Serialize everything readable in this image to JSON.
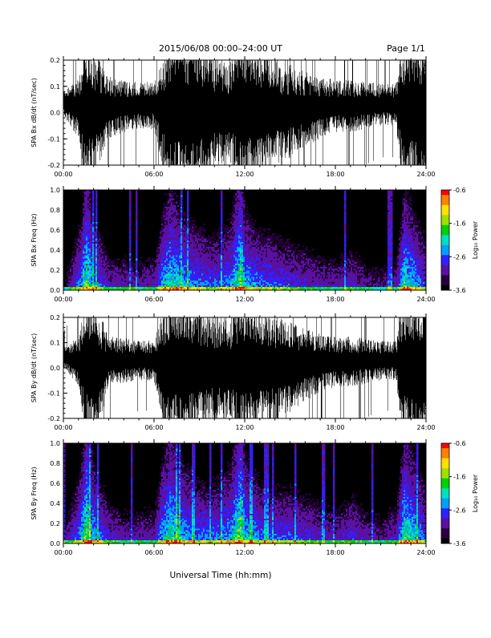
{
  "header": {
    "title": "2015/06/08  00:00–24:00 UT",
    "page_label": "Page 1/1"
  },
  "colors": {
    "trace": "#000000",
    "spectrogram_background": "#000000",
    "colormap": [
      "#000000",
      "#2a0040",
      "#5a10a0",
      "#3020ff",
      "#00a0ff",
      "#00e0c0",
      "#00d000",
      "#a0e000",
      "#ffe000",
      "#ff8000",
      "#ff0000"
    ]
  },
  "chart_data": [
    {
      "type": "line",
      "ylabel": "SPA Bx dB/dt (nT/sec)",
      "xlabel": "",
      "x_ticks": [
        "00:00",
        "06:00",
        "12:00",
        "18:00",
        "24:00"
      ],
      "xlim": [
        0,
        24
      ],
      "ylim": [
        -0.2,
        0.2
      ],
      "y_ticks": [
        "-0.2",
        "-0.1",
        "0.0",
        "0.1",
        "0.2"
      ],
      "x_hours": [
        0,
        1,
        1.5,
        2,
        3,
        4,
        5,
        6,
        6.5,
        7,
        8,
        9,
        10,
        11,
        11.7,
        12,
        13,
        14,
        15,
        16,
        17,
        18,
        19,
        20,
        21,
        22,
        22.5,
        23,
        24
      ],
      "envelope_nT_per_s": [
        0.05,
        0.12,
        0.3,
        0.25,
        0.12,
        0.1,
        0.09,
        0.09,
        0.2,
        0.3,
        0.3,
        0.28,
        0.22,
        0.2,
        0.3,
        0.28,
        0.25,
        0.2,
        0.18,
        0.14,
        0.12,
        0.1,
        0.1,
        0.09,
        0.08,
        0.08,
        0.3,
        0.3,
        0.3
      ]
    },
    {
      "type": "heatmap",
      "ylabel": "SPA Bx Freq (Hz)",
      "xlabel": "",
      "x_ticks": [
        "00:00",
        "06:00",
        "12:00",
        "18:00",
        "24:00"
      ],
      "xlim": [
        0,
        24
      ],
      "ylim": [
        0,
        1.0
      ],
      "y_ticks": [
        "0.0",
        "0.2",
        "0.4",
        "0.6",
        "0.8",
        "1.0"
      ],
      "colorbar": {
        "label": "Log₁₀ Power",
        "range": [
          -3.6,
          -0.6
        ],
        "ticks": [
          "-0.6",
          "-1.6",
          "-2.6",
          "-3.6"
        ]
      },
      "x_hours": [
        0,
        1,
        1.5,
        2,
        3,
        4,
        5,
        6,
        6.5,
        7,
        8,
        9,
        10,
        11,
        11.7,
        12,
        13,
        14,
        15,
        16,
        17,
        18,
        19,
        20,
        21,
        22,
        22.5,
        23,
        24
      ],
      "activity_level": [
        0.15,
        0.5,
        0.85,
        0.55,
        0.3,
        0.3,
        0.28,
        0.3,
        0.6,
        0.75,
        0.6,
        0.5,
        0.45,
        0.55,
        0.9,
        0.6,
        0.5,
        0.45,
        0.4,
        0.35,
        0.3,
        0.28,
        0.35,
        0.25,
        0.22,
        0.3,
        0.75,
        0.65,
        0.4
      ]
    },
    {
      "type": "line",
      "ylabel": "SPA By dB/dt (nT/sec)",
      "xlabel": "",
      "x_ticks": [
        "00:00",
        "06:00",
        "12:00",
        "18:00",
        "24:00"
      ],
      "xlim": [
        0,
        24
      ],
      "ylim": [
        -0.2,
        0.2
      ],
      "y_ticks": [
        "-0.2",
        "-0.1",
        "0.0",
        "0.1",
        "0.2"
      ],
      "x_hours": [
        0,
        1,
        1.5,
        2,
        3,
        4,
        5,
        6,
        6.5,
        7,
        8,
        9,
        10,
        11,
        11.7,
        12,
        13,
        14,
        15,
        16,
        17,
        18,
        19,
        20,
        21,
        22,
        22.5,
        23,
        24
      ],
      "envelope_nT_per_s": [
        0.04,
        0.1,
        0.3,
        0.3,
        0.1,
        0.09,
        0.08,
        0.08,
        0.22,
        0.3,
        0.3,
        0.25,
        0.22,
        0.2,
        0.3,
        0.28,
        0.25,
        0.22,
        0.18,
        0.15,
        0.12,
        0.1,
        0.1,
        0.09,
        0.08,
        0.08,
        0.3,
        0.3,
        0.3
      ]
    },
    {
      "type": "heatmap",
      "ylabel": "SPA By Freq (Hz)",
      "xlabel": "Universal Time (hh:mm)",
      "x_ticks": [
        "00:00",
        "06:00",
        "12:00",
        "18:00",
        "24:00"
      ],
      "xlim": [
        0,
        24
      ],
      "ylim": [
        0,
        1.0
      ],
      "y_ticks": [
        "0.0",
        "0.2",
        "0.4",
        "0.6",
        "0.8",
        "1.0"
      ],
      "colorbar": {
        "label": "Log₁₀ Power",
        "range": [
          -3.6,
          -0.6
        ],
        "ticks": [
          "-0.6",
          "-1.6",
          "-2.6",
          "-3.6"
        ]
      },
      "x_hours": [
        0,
        1,
        1.5,
        2,
        3,
        4,
        5,
        6,
        6.5,
        7,
        8,
        9,
        10,
        11,
        11.7,
        12,
        13,
        14,
        15,
        16,
        17,
        18,
        19,
        20,
        21,
        22,
        22.5,
        23,
        24
      ],
      "activity_level": [
        0.2,
        0.55,
        0.9,
        0.6,
        0.35,
        0.3,
        0.3,
        0.3,
        0.65,
        0.8,
        0.6,
        0.5,
        0.5,
        0.6,
        0.95,
        0.65,
        0.5,
        0.45,
        0.45,
        0.4,
        0.35,
        0.3,
        0.4,
        0.3,
        0.25,
        0.35,
        0.8,
        0.7,
        0.45
      ]
    }
  ]
}
